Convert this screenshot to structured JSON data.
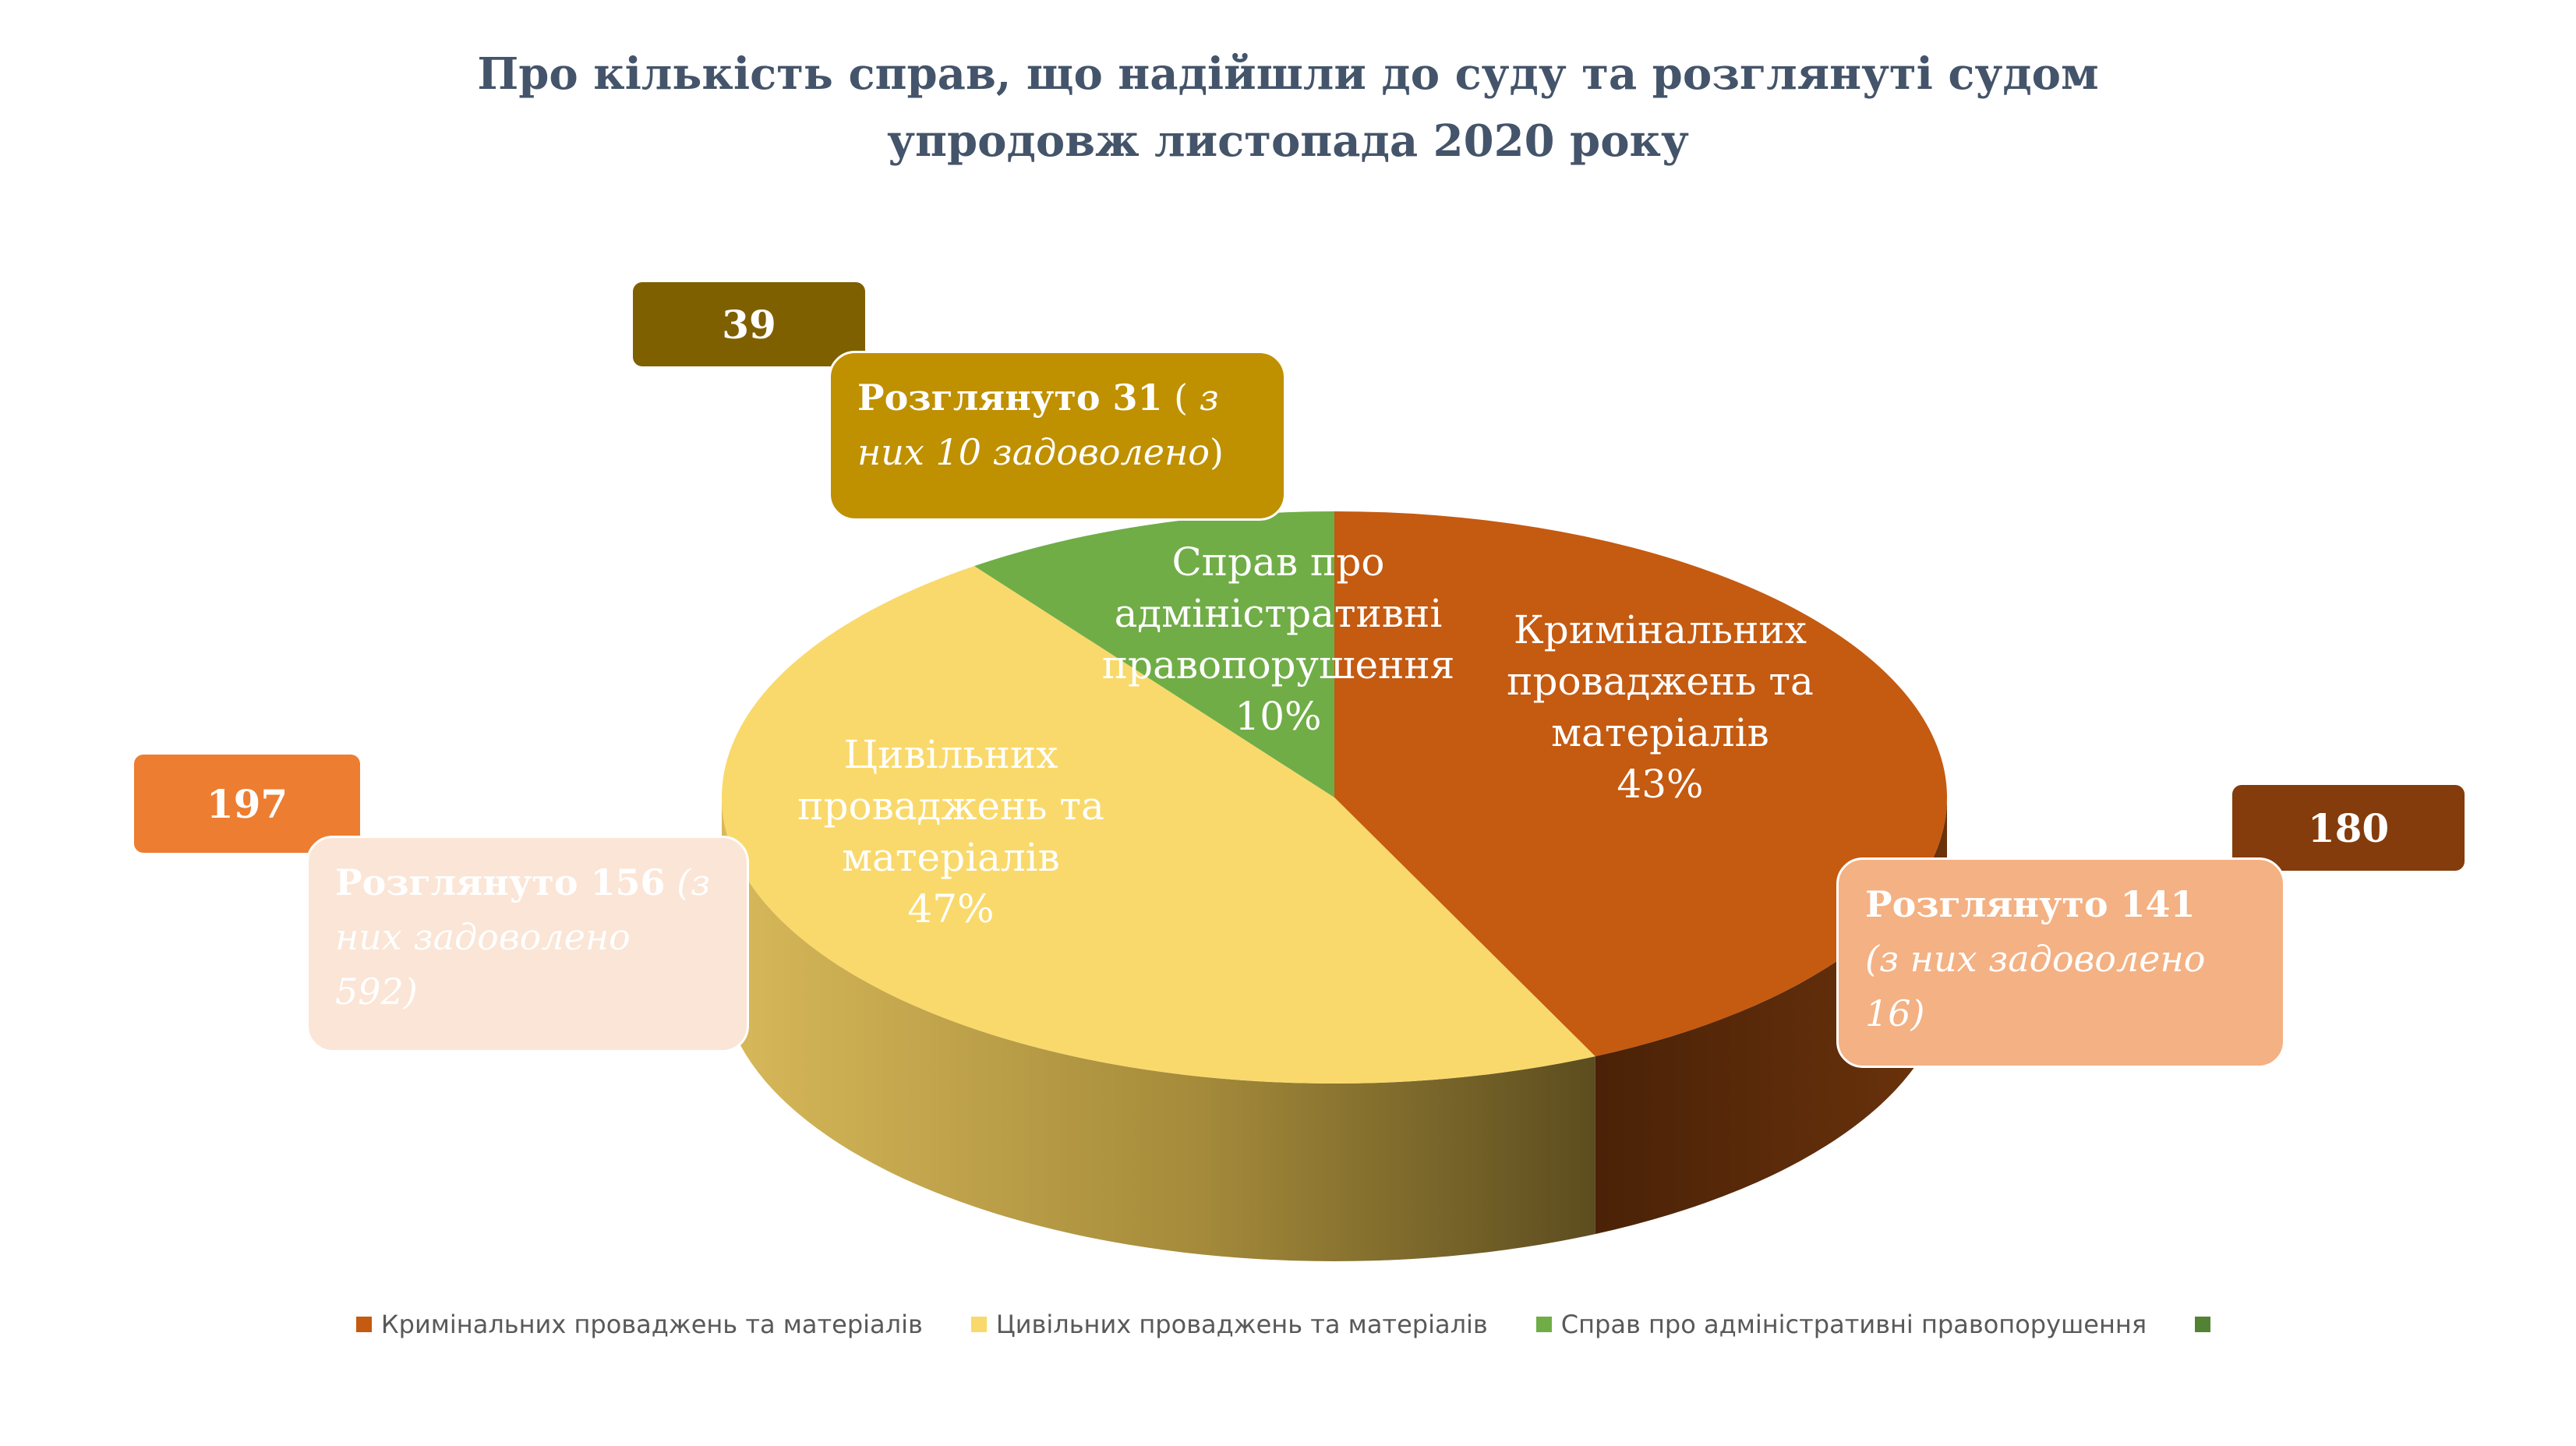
{
  "title": {
    "line1": "Про кількість справ, що надійшли до суду та розглянуті судом",
    "line2": "упродовж листопада 2020 року"
  },
  "chart_data": {
    "type": "pie",
    "categories": [
      "Кримінальних проваджень та матеріалів",
      "Цивільних проваджень та матеріалів",
      "Справ про адміністративні правопорушення"
    ],
    "values": [
      43,
      47,
      10
    ],
    "units": "%",
    "received": [
      180,
      197,
      39
    ],
    "slice_labels": [
      {
        "lines": [
          "Кримінальних",
          "проваджень та",
          "матеріалів"
        ],
        "pct": "43%"
      },
      {
        "lines": [
          "Цивільних",
          "проваджень та",
          "матеріалів"
        ],
        "pct": "47%"
      },
      {
        "lines": [
          "Справ про",
          "адміністративні",
          "правопорушення"
        ],
        "pct": "10%"
      }
    ],
    "colors": [
      "#c55a11",
      "#f9d96b",
      "#70ad47"
    ],
    "legend": [
      "Кримінальних проваджень та матеріалів",
      "Цивільних проваджень та матеріалів",
      "Справ про адміністративні правопорушення",
      ""
    ],
    "legend_colors": [
      "#c55a11",
      "#f9d96b",
      "#70ad47",
      "#548235"
    ],
    "legend_position": "bottom"
  },
  "totals": {
    "criminal": "180",
    "civil": "197",
    "admin": "39"
  },
  "callouts": {
    "criminal": {
      "strong": "Розглянуто 141",
      "em": "(з них задоволено 16)"
    },
    "civil": {
      "strong": "Розглянуто 156",
      "em": "(з них задоволено 592)"
    },
    "admin": {
      "strong": "Розглянуто 31",
      "open": " ( ",
      "em": "з них 10 задоволено",
      "close": ")"
    }
  }
}
